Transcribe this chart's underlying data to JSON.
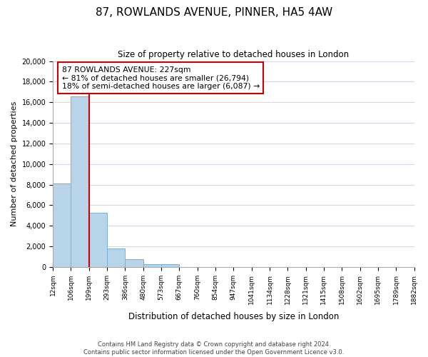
{
  "title": "87, ROWLANDS AVENUE, PINNER, HA5 4AW",
  "subtitle": "Size of property relative to detached houses in London",
  "xlabel": "Distribution of detached houses by size in London",
  "ylabel": "Number of detached properties",
  "bin_labels": [
    "12sqm",
    "106sqm",
    "199sqm",
    "293sqm",
    "386sqm",
    "480sqm",
    "573sqm",
    "667sqm",
    "760sqm",
    "854sqm",
    "947sqm",
    "1041sqm",
    "1134sqm",
    "1228sqm",
    "1321sqm",
    "1415sqm",
    "1508sqm",
    "1602sqm",
    "1695sqm",
    "1789sqm",
    "1882sqm"
  ],
  "bar_values": [
    8100,
    16600,
    5300,
    1800,
    800,
    300,
    300,
    0,
    0,
    0,
    0,
    0,
    0,
    0,
    0,
    0,
    0,
    0,
    0,
    0
  ],
  "bar_color": "#b8d4e8",
  "bar_edge_color": "#7bafd4",
  "vline_x": 2.0,
  "vline_color": "#cc0000",
  "ylim": [
    0,
    20000
  ],
  "yticks": [
    0,
    2000,
    4000,
    6000,
    8000,
    10000,
    12000,
    14000,
    16000,
    18000,
    20000
  ],
  "annotation_text": "87 ROWLANDS AVENUE: 227sqm\n← 81% of detached houses are smaller (26,794)\n18% of semi-detached houses are larger (6,087) →",
  "annotation_box_color": "#ffffff",
  "annotation_box_edge": "#cc0000",
  "footer_line1": "Contains HM Land Registry data © Crown copyright and database right 2024.",
  "footer_line2": "Contains public sector information licensed under the Open Government Licence v3.0.",
  "bg_color": "#ffffff",
  "grid_color": "#d0d8e8"
}
